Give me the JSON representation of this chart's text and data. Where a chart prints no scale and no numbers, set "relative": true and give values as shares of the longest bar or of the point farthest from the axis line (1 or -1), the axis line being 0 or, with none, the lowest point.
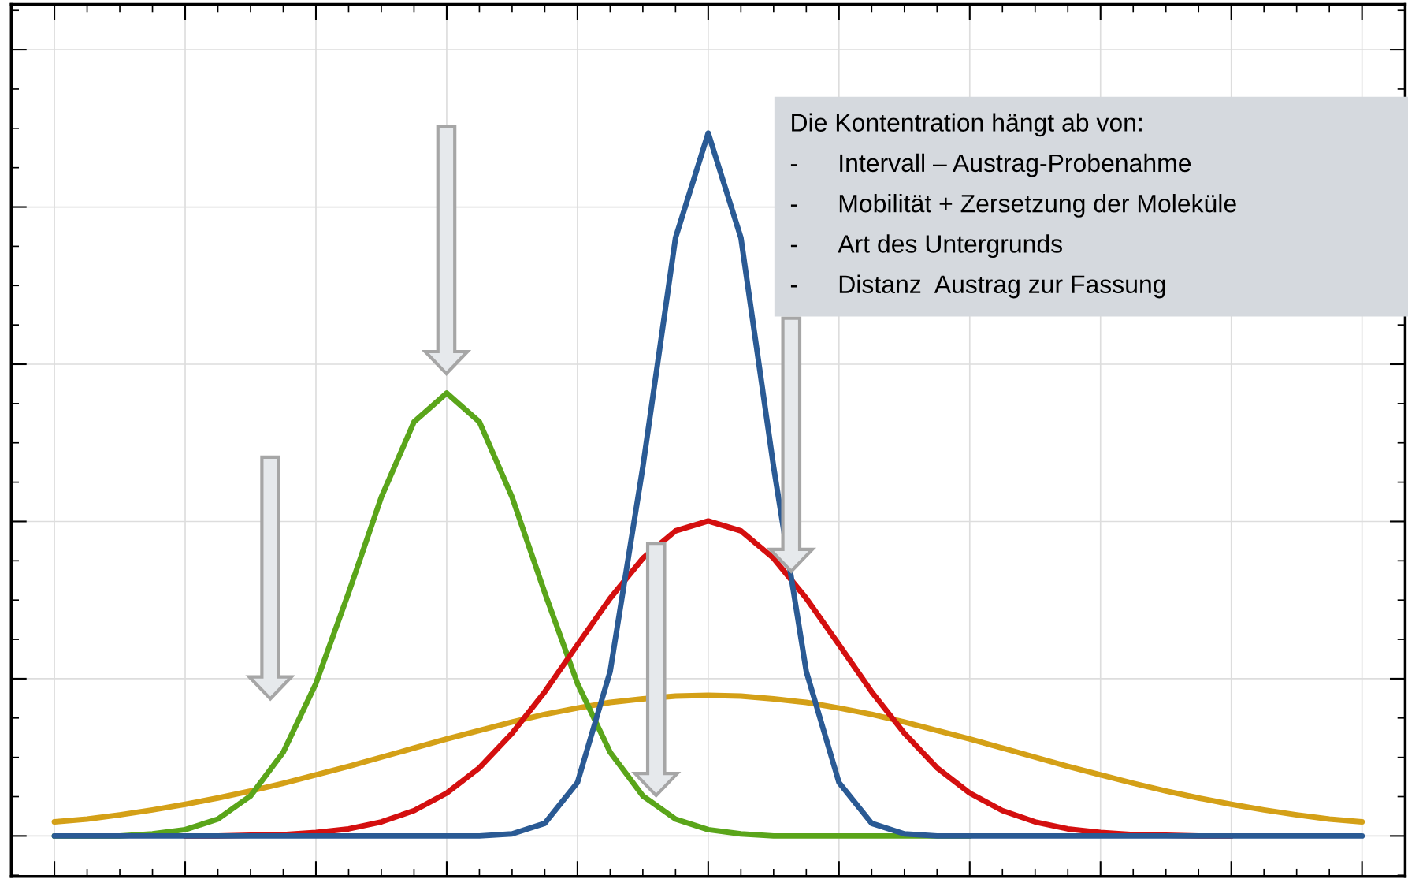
{
  "chart_data": {
    "type": "line",
    "relative": true,
    "grid": true,
    "categories": [
      null,
      null,
      null,
      null,
      null,
      null,
      null,
      null,
      null,
      null,
      null,
      null,
      null,
      null,
      null,
      null,
      null,
      null,
      null,
      null,
      null,
      null,
      null,
      null,
      null,
      null,
      null,
      null,
      null,
      null,
      null,
      null,
      null,
      null,
      null,
      null,
      null,
      null,
      null,
      null,
      null
    ],
    "series": [
      {
        "color": "#d4a017",
        "values": [
          0.02,
          0.024,
          0.03,
          0.037,
          0.045,
          0.054,
          0.064,
          0.075,
          0.087,
          0.099,
          0.112,
          0.125,
          0.138,
          0.15,
          0.162,
          0.173,
          0.182,
          0.19,
          0.195,
          0.199,
          0.2,
          0.199,
          0.195,
          0.19,
          0.182,
          0.173,
          0.162,
          0.15,
          0.138,
          0.125,
          0.112,
          0.099,
          0.087,
          0.075,
          0.064,
          0.054,
          0.045,
          0.037,
          0.03,
          0.024,
          0.02
        ]
      },
      {
        "color": "#5aa51a",
        "values": [
          0,
          0,
          0,
          0.003,
          0.009,
          0.024,
          0.057,
          0.119,
          0.217,
          0.346,
          0.482,
          0.589,
          0.63,
          0.589,
          0.482,
          0.346,
          0.217,
          0.119,
          0.057,
          0.024,
          0.009,
          0.003,
          0,
          0,
          0,
          0,
          0,
          0,
          0,
          null,
          null,
          null,
          null,
          null,
          null,
          null,
          null,
          null,
          null,
          null,
          null
        ]
      },
      {
        "color": "#d40f0f",
        "values": [
          null,
          null,
          null,
          null,
          0,
          0,
          0.001,
          0.002,
          0.005,
          0.01,
          0.02,
          0.036,
          0.061,
          0.097,
          0.146,
          0.205,
          0.272,
          0.338,
          0.395,
          0.434,
          0.448,
          0.434,
          0.395,
          0.338,
          0.272,
          0.205,
          0.146,
          0.097,
          0.061,
          0.036,
          0.02,
          0.01,
          0.005,
          0.002,
          0.001,
          0,
          0,
          null,
          null,
          null,
          null
        ]
      },
      {
        "color": "#2a5a94",
        "values": [
          0,
          0,
          0,
          0,
          0,
          0,
          0,
          0,
          0,
          0,
          0,
          0,
          0,
          0,
          0.003,
          0.018,
          0.076,
          0.234,
          0.525,
          0.851,
          1,
          0.851,
          0.525,
          0.234,
          0.076,
          0.018,
          0.003,
          0,
          0,
          0,
          0,
          0,
          0,
          0,
          0,
          0,
          0,
          0,
          0,
          0,
          0
        ]
      }
    ],
    "annotations": [
      "Die Kontentration hängt ab von:",
      "- Intervall – Austrag-Probenahme",
      "- Mobilität + Zersetzung der Moleküle",
      "- Art des Untergrunds",
      "- Distanz  Austrag zur Fassung"
    ]
  }
}
